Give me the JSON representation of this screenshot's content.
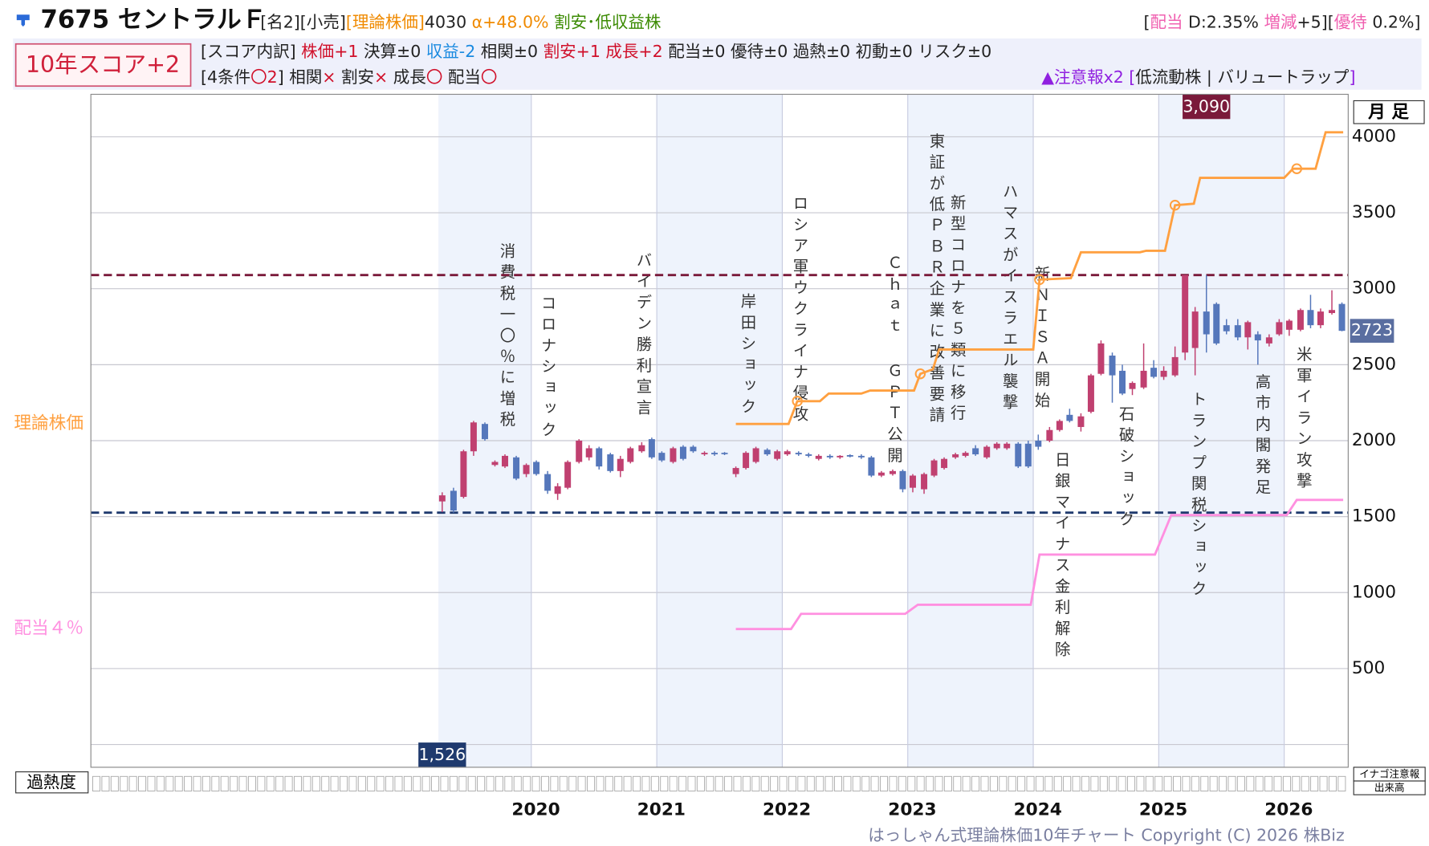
{
  "header": {
    "title": "7675 セントラルＦ",
    "row1": [
      {
        "text": "[名2][小売]",
        "color": "#222222"
      },
      {
        "text": "[理論株価]",
        "color": "#f08a00"
      },
      {
        "text": "4030",
        "color": "#222222"
      },
      {
        "text": " α+48.0%",
        "color": "#f08a00"
      },
      {
        "text": " 割安･低収益株",
        "color": "#3a8a00"
      }
    ],
    "row1_right": [
      {
        "text": "[",
        "color": "#222222"
      },
      {
        "text": "配当",
        "color": "#f060b0"
      },
      {
        "text": " D:2.35% ",
        "color": "#222222"
      },
      {
        "text": "増減",
        "color": "#f060b0"
      },
      {
        "text": "+5][",
        "color": "#222222"
      },
      {
        "text": "優待",
        "color": "#f060b0"
      },
      {
        "text": " 0.2%]",
        "color": "#222222"
      }
    ],
    "score": "10年スコア+2",
    "row2": [
      {
        "text": "[スコア内訳] ",
        "color": "#222222"
      },
      {
        "text": "株価+1",
        "color": "#d0102a"
      },
      {
        "text": " 決算±0 ",
        "color": "#222222"
      },
      {
        "text": "収益-2",
        "color": "#1a8ae0"
      },
      {
        "text": " 相関±0 ",
        "color": "#222222"
      },
      {
        "text": "割安+1 成長+2",
        "color": "#d0102a"
      },
      {
        "text": " 配当±0 優待±0 過熱±0 初動±0 リスク±0",
        "color": "#222222"
      }
    ],
    "row3": [
      {
        "text": "[4条件",
        "color": "#222222"
      },
      {
        "text": "〇2",
        "color": "#d0102a"
      },
      {
        "text": "] 相関",
        "color": "#222222"
      },
      {
        "text": "×",
        "color": "#d0102a"
      },
      {
        "text": " 割安",
        "color": "#222222"
      },
      {
        "text": "×",
        "color": "#d0102a"
      },
      {
        "text": " 成長",
        "color": "#222222"
      },
      {
        "text": "〇",
        "color": "#d0102a"
      },
      {
        "text": " 配当",
        "color": "#222222"
      },
      {
        "text": "〇",
        "color": "#d0102a"
      }
    ],
    "row3_right": [
      {
        "text": "▲注意報x2 [",
        "color": "#9020e0"
      },
      {
        "text": "低流動株 | バリュートラップ",
        "color": "#222222"
      },
      {
        "text": "]",
        "color": "#9020e0"
      }
    ]
  },
  "chart_data": {
    "type": "candlestick",
    "period_label": "月 足",
    "heat_label": "過熱度",
    "side_labels": [
      "イナゴ注意報",
      "出来高"
    ],
    "copyright": "はっしゃん式理論株価10年チャート Copyright (C) 2026 株Biz",
    "up_color": "#c04070",
    "down_color": "#5577bb",
    "xlim": [
      2016.49,
      2026.51
    ],
    "xticks": [
      2020,
      2021,
      2022,
      2023,
      2024,
      2025,
      2026
    ],
    "shaded": [
      [
        2019.26,
        2020
      ],
      [
        2021,
        2022
      ],
      [
        2023,
        2024
      ],
      [
        2025,
        2026
      ]
    ],
    "ylim": [
      -150,
      4280
    ],
    "yticks": [
      500,
      1000,
      1500,
      2000,
      2500,
      3000,
      3500,
      4000
    ],
    "grid": true,
    "x": [
      2019.29,
      2019.38,
      2019.46,
      2019.54,
      2019.63,
      2019.71,
      2019.79,
      2019.88,
      2019.96,
      2020.04,
      2020.13,
      2020.21,
      2020.29,
      2020.38,
      2020.46,
      2020.54,
      2020.63,
      2020.71,
      2020.79,
      2020.88,
      2020.96,
      2021.04,
      2021.13,
      2021.21,
      2021.29,
      2021.38,
      2021.46,
      2021.54,
      2021.63,
      2021.71,
      2021.79,
      2021.88,
      2021.96,
      2022.04,
      2022.13,
      2022.21,
      2022.29,
      2022.38,
      2022.46,
      2022.54,
      2022.63,
      2022.71,
      2022.79,
      2022.88,
      2022.96,
      2023.04,
      2023.13,
      2023.21,
      2023.29,
      2023.38,
      2023.46,
      2023.54,
      2023.63,
      2023.71,
      2023.79,
      2023.88,
      2023.96,
      2024.04,
      2024.13,
      2024.21,
      2024.29,
      2024.38,
      2024.46,
      2024.54,
      2024.63,
      2024.71,
      2024.79,
      2024.88,
      2024.96,
      2025.04,
      2025.13,
      2025.21,
      2025.29,
      2025.38,
      2025.46,
      2025.54,
      2025.63,
      2025.71,
      2025.79,
      2025.88,
      2025.96,
      2026.04,
      2026.13,
      2026.21,
      2026.29,
      2026.38,
      2026.46
    ],
    "open": [
      1600,
      1670,
      1630,
      1930,
      2110,
      1840,
      1830,
      1890,
      1780,
      1860,
      1780,
      1650,
      1690,
      1860,
      1890,
      1950,
      1910,
      1800,
      1860,
      1930,
      2010,
      1920,
      1860,
      1960,
      1960,
      1910,
      1920,
      1920,
      1780,
      1820,
      1860,
      1940,
      1880,
      1910,
      1920,
      1910,
      1880,
      1900,
      1890,
      1905,
      1900,
      1890,
      1770,
      1780,
      1800,
      1690,
      1680,
      1770,
      1820,
      1890,
      1900,
      1950,
      1890,
      1950,
      1950,
      1980,
      1980,
      2000,
      2000,
      2070,
      2170,
      2090,
      2190,
      2440,
      2560,
      2460,
      2340,
      2350,
      2480,
      2420,
      2430,
      2580,
      2610,
      2850,
      2900,
      2760,
      2760,
      2680,
      2700,
      2640,
      2700,
      2730,
      2730,
      2860,
      2760,
      2840,
      2900
    ],
    "high": [
      1660,
      1690,
      1940,
      2130,
      2120,
      1870,
      1910,
      1900,
      1850,
      1870,
      1800,
      1720,
      1870,
      2010,
      1970,
      1960,
      1920,
      1900,
      1960,
      1990,
      2020,
      1930,
      1960,
      1970,
      1970,
      1930,
      1930,
      1925,
      1830,
      1930,
      1960,
      1950,
      1940,
      1940,
      1930,
      1920,
      1910,
      1910,
      1905,
      1910,
      1910,
      1900,
      1800,
      1810,
      1810,
      1780,
      1790,
      1880,
      1890,
      1920,
      1930,
      1970,
      1970,
      1990,
      1990,
      1990,
      2000,
      2040,
      2090,
      2140,
      2210,
      2180,
      2440,
      2660,
      2580,
      2500,
      2390,
      2640,
      2530,
      2490,
      2620,
      3090,
      2880,
      3090,
      2910,
      2800,
      2800,
      2790,
      2720,
      2700,
      2800,
      2800,
      2870,
      2960,
      2870,
      2990,
      2910
    ],
    "low": [
      1530,
      1526,
      1620,
      1900,
      2000,
      1830,
      1820,
      1740,
      1760,
      1770,
      1650,
      1610,
      1680,
      1850,
      1870,
      1810,
      1790,
      1760,
      1850,
      1920,
      1880,
      1860,
      1850,
      1870,
      1920,
      1900,
      1900,
      1905,
      1760,
      1810,
      1850,
      1900,
      1870,
      1900,
      1900,
      1890,
      1870,
      1880,
      1880,
      1890,
      1880,
      1760,
      1760,
      1770,
      1660,
      1660,
      1650,
      1760,
      1810,
      1880,
      1890,
      1900,
      1880,
      1940,
      1940,
      1820,
      1820,
      1940,
      1990,
      2060,
      2120,
      2060,
      2180,
      2430,
      2250,
      2300,
      2300,
      2340,
      2410,
      2400,
      2420,
      2530,
      2430,
      2580,
      2630,
      2700,
      2660,
      2600,
      2500,
      2620,
      2690,
      2690,
      2720,
      2740,
      2740,
      2830,
      2720
    ],
    "close": [
      1640,
      1540,
      1930,
      2120,
      2010,
      1860,
      1900,
      1750,
      1840,
      1780,
      1670,
      1700,
      1860,
      2000,
      1950,
      1830,
      1800,
      1880,
      1950,
      1970,
      1890,
      1870,
      1950,
      1880,
      1930,
      1920,
      1910,
      1915,
      1820,
      1920,
      1950,
      1910,
      1930,
      1930,
      1910,
      1900,
      1900,
      1890,
      1900,
      1895,
      1890,
      1770,
      1790,
      1800,
      1680,
      1770,
      1780,
      1870,
      1880,
      1910,
      1920,
      1910,
      1960,
      1980,
      1980,
      1830,
      1830,
      1960,
      2070,
      2130,
      2130,
      2160,
      2430,
      2640,
      2430,
      2310,
      2380,
      2460,
      2420,
      2460,
      2550,
      3090,
      2850,
      2700,
      2640,
      2720,
      2680,
      2780,
      2660,
      2680,
      2780,
      2790,
      2860,
      2760,
      2850,
      2860,
      2723
    ],
    "series": [
      {
        "name": "理論株価",
        "color": "#ffa040",
        "x": [
          2021.63,
          2022.05,
          2022.12,
          2022.3,
          2022.37,
          2022.63,
          2022.7,
          2023.05,
          2023.1,
          2023.2,
          2023.25,
          2024.0,
          2024.05,
          2024.3,
          2024.38,
          2024.85,
          2024.9,
          2025.05,
          2025.13,
          2025.28,
          2025.33,
          2026.0,
          2026.07,
          2026.25,
          2026.33,
          2026.47
        ],
        "values": [
          2110,
          2110,
          2260,
          2260,
          2310,
          2310,
          2330,
          2330,
          2440,
          2470,
          2600,
          2600,
          3060,
          3070,
          3240,
          3240,
          3250,
          3250,
          3550,
          3560,
          3730,
          3730,
          3790,
          3790,
          4030,
          4030
        ],
        "marker_x": [
          2022.12,
          2023.1,
          2024.05,
          2025.13,
          2026.1
        ],
        "marker_values": [
          2260,
          2440,
          3060,
          3550,
          3790
        ]
      },
      {
        "name": "配当４％",
        "color": "#ff90e0",
        "x": [
          2021.63,
          2022.07,
          2022.15,
          2022.98,
          2023.08,
          2023.98,
          2024.05,
          2024.97,
          2025.1,
          2026.02,
          2026.1,
          2026.47
        ],
        "values": [
          760,
          760,
          860,
          860,
          920,
          920,
          1250,
          1250,
          1510,
          1510,
          1610,
          1610
        ]
      }
    ],
    "hlines": [
      {
        "value": 3090,
        "label": "3,090",
        "color": "#7a1a3a",
        "x": 2025.38,
        "label_pos": "top"
      },
      {
        "value": 1526,
        "label": "1,526",
        "color": "#1f3a6e",
        "x": 2019.29,
        "label_pos": "bottom"
      }
    ],
    "last_price": 2723,
    "last_color": "#5a6ea0",
    "events": [
      "消費税一〇％に増税",
      "コロナショック",
      "バイデン勝利宣言",
      "岸田ショック",
      "ロシア軍ウクライナ侵攻",
      "Ｃｈａｔ ＧＰＴ公開",
      "東証が低ＰＢＲ企業に改善要請",
      "新型コロナを５類に移行",
      "ハマスがイスラエル襲撃",
      "新ＮＩＳＡ開始",
      "日銀マイナス金利解除",
      "石破ショック",
      "トランプ関税ショック",
      "高市内閣発足",
      "米軍イラン攻撃"
    ]
  }
}
